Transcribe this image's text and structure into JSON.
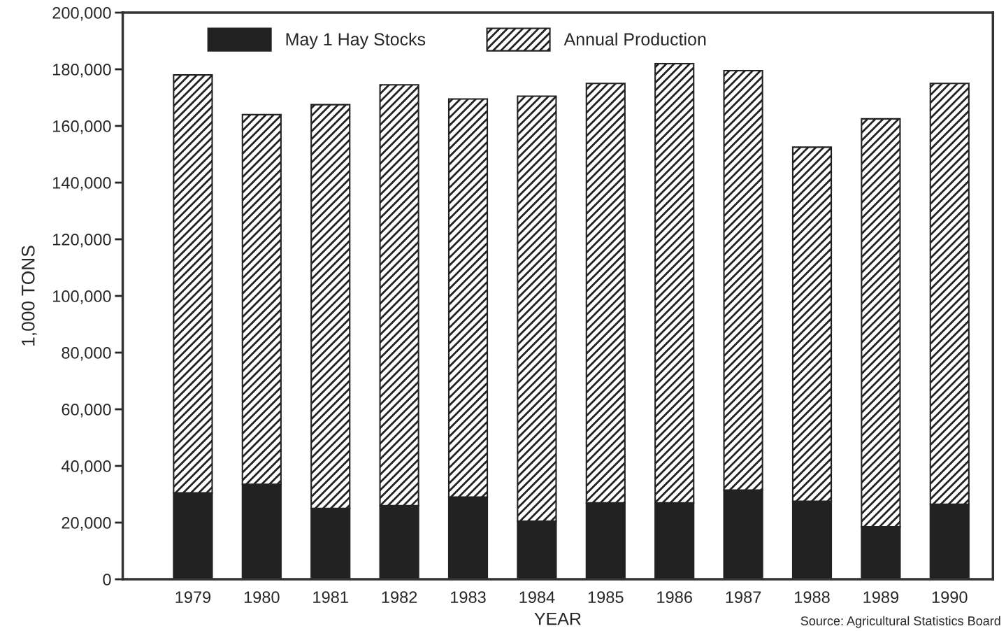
{
  "chart_data": {
    "type": "bar",
    "stacked": true,
    "xlabel": "YEAR",
    "ylabel": "1,000 TONS",
    "categories": [
      "1979",
      "1980",
      "1981",
      "1982",
      "1983",
      "1984",
      "1985",
      "1986",
      "1987",
      "1988",
      "1989",
      "1990"
    ],
    "series": [
      {
        "name": "May 1 Hay Stocks",
        "color": "#222222",
        "values": [
          30500,
          33500,
          25000,
          26000,
          29000,
          20500,
          27000,
          27000,
          31500,
          27500,
          18500,
          26500
        ]
      },
      {
        "name": "Annual Production",
        "color": "#222222",
        "values": [
          147500,
          130500,
          142500,
          148500,
          140500,
          150000,
          148000,
          155000,
          148000,
          125000,
          144000,
          148500
        ]
      }
    ],
    "ylim": [
      0,
      200000
    ],
    "yticks": [
      {
        "value": 0,
        "label": "0"
      },
      {
        "value": 20000,
        "label": "20,000"
      },
      {
        "value": 40000,
        "label": "40,000"
      },
      {
        "value": 60000,
        "label": "60,000"
      },
      {
        "value": 80000,
        "label": "80,000"
      },
      {
        "value": 100000,
        "label": "100,000"
      },
      {
        "value": 120000,
        "label": "120,000"
      },
      {
        "value": 140000,
        "label": "140,000"
      },
      {
        "value": 160000,
        "label": "160,000"
      },
      {
        "value": 180000,
        "label": "180,000"
      },
      {
        "value": 200000,
        "label": "200,000"
      }
    ],
    "grid": false,
    "legend": "top left",
    "annotations": [
      "Source: Agricultural Statistics Board"
    ]
  }
}
